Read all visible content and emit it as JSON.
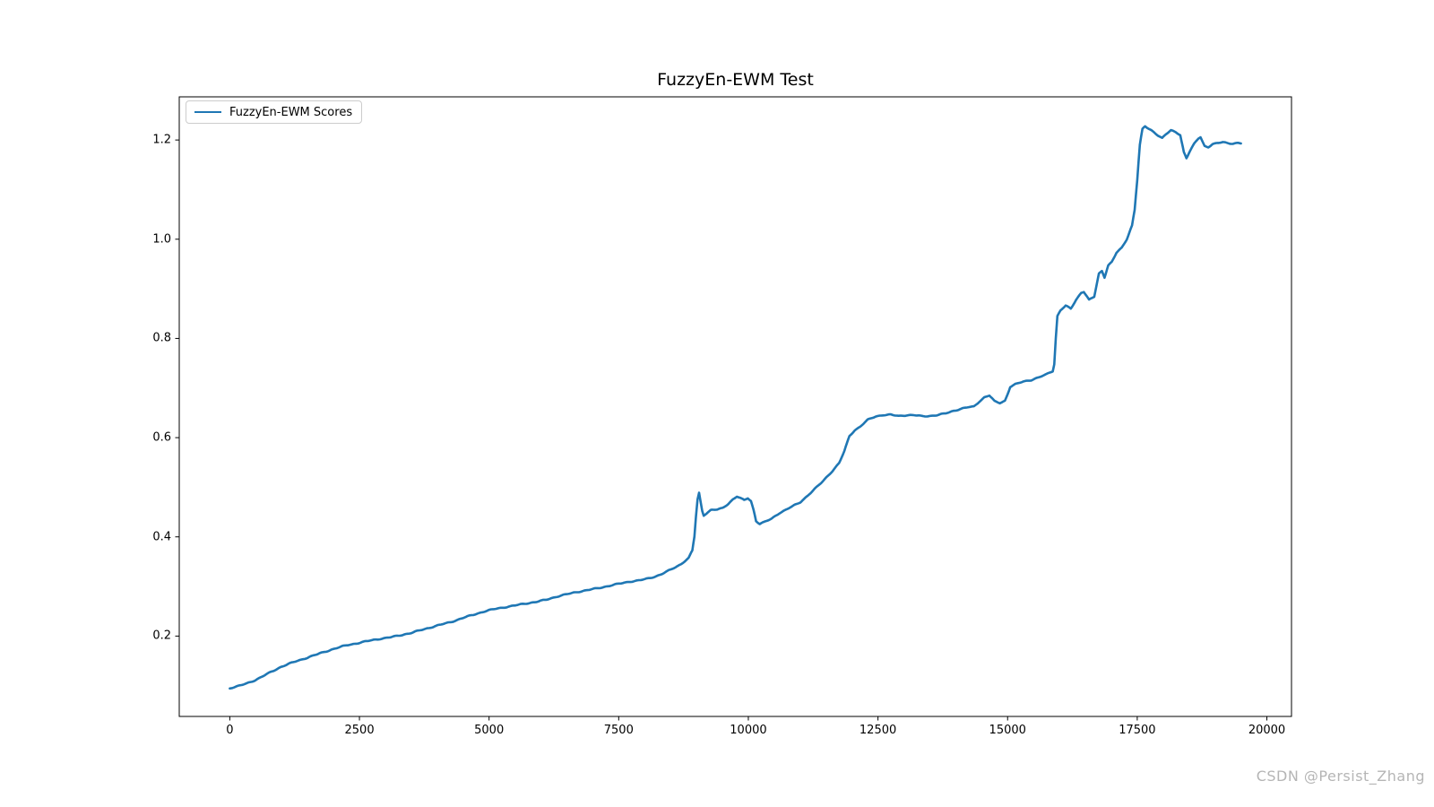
{
  "watermark": {
    "text": "CSDN @Persist_Zhang"
  },
  "colors": {
    "line": "#1f77b4",
    "spine": "#000000",
    "tick": "#000000",
    "legend_border": "#cccccc",
    "watermark": "#b5b5b5"
  },
  "chart_data": {
    "type": "line",
    "title": "FuzzyEn-EWM Test",
    "xlabel": "",
    "ylabel": "",
    "xlim": [
      -975,
      20475
    ],
    "ylim": [
      0.038,
      1.287
    ],
    "x_ticks": [
      0,
      2500,
      5000,
      7500,
      10000,
      12500,
      15000,
      17500,
      20000
    ],
    "y_ticks": [
      0.2,
      0.4,
      0.6,
      0.8,
      1.0,
      1.2
    ],
    "grid": false,
    "legend_position": "upper left",
    "series": [
      {
        "name": "FuzzyEn-EWM Scores",
        "color": "#1f77b4",
        "points": [
          [
            0,
            0.095
          ],
          [
            150,
            0.099
          ],
          [
            300,
            0.104
          ],
          [
            500,
            0.112
          ],
          [
            750,
            0.125
          ],
          [
            1000,
            0.138
          ],
          [
            1250,
            0.148
          ],
          [
            1500,
            0.157
          ],
          [
            1750,
            0.166
          ],
          [
            2000,
            0.174
          ],
          [
            2250,
            0.181
          ],
          [
            2500,
            0.186
          ],
          [
            2700,
            0.191
          ],
          [
            2900,
            0.195
          ],
          [
            3100,
            0.198
          ],
          [
            3300,
            0.202
          ],
          [
            3500,
            0.206
          ],
          [
            3700,
            0.212
          ],
          [
            3900,
            0.218
          ],
          [
            4100,
            0.224
          ],
          [
            4300,
            0.23
          ],
          [
            4500,
            0.237
          ],
          [
            4700,
            0.243
          ],
          [
            4900,
            0.249
          ],
          [
            5100,
            0.254
          ],
          [
            5300,
            0.258
          ],
          [
            5500,
            0.262
          ],
          [
            5700,
            0.266
          ],
          [
            5900,
            0.269
          ],
          [
            6100,
            0.273
          ],
          [
            6300,
            0.279
          ],
          [
            6500,
            0.284
          ],
          [
            6700,
            0.289
          ],
          [
            6900,
            0.293
          ],
          [
            7100,
            0.297
          ],
          [
            7300,
            0.301
          ],
          [
            7500,
            0.305
          ],
          [
            7700,
            0.309
          ],
          [
            7900,
            0.312
          ],
          [
            8100,
            0.317
          ],
          [
            8300,
            0.324
          ],
          [
            8500,
            0.334
          ],
          [
            8700,
            0.345
          ],
          [
            8850,
            0.357
          ],
          [
            8920,
            0.372
          ],
          [
            8960,
            0.4
          ],
          [
            8990,
            0.44
          ],
          [
            9020,
            0.475
          ],
          [
            9050,
            0.488
          ],
          [
            9080,
            0.47
          ],
          [
            9110,
            0.452
          ],
          [
            9140,
            0.443
          ],
          [
            9200,
            0.448
          ],
          [
            9280,
            0.454
          ],
          [
            9400,
            0.455
          ],
          [
            9500,
            0.458
          ],
          [
            9600,
            0.466
          ],
          [
            9700,
            0.476
          ],
          [
            9780,
            0.482
          ],
          [
            9850,
            0.478
          ],
          [
            9920,
            0.474
          ],
          [
            9990,
            0.478
          ],
          [
            10050,
            0.472
          ],
          [
            10100,
            0.455
          ],
          [
            10150,
            0.432
          ],
          [
            10220,
            0.426
          ],
          [
            10300,
            0.429
          ],
          [
            10450,
            0.436
          ],
          [
            10600,
            0.448
          ],
          [
            10800,
            0.459
          ],
          [
            11000,
            0.47
          ],
          [
            11200,
            0.489
          ],
          [
            11400,
            0.508
          ],
          [
            11600,
            0.53
          ],
          [
            11750,
            0.548
          ],
          [
            11850,
            0.572
          ],
          [
            11950,
            0.603
          ],
          [
            12050,
            0.615
          ],
          [
            12150,
            0.622
          ],
          [
            12300,
            0.636
          ],
          [
            12450,
            0.643
          ],
          [
            12600,
            0.646
          ],
          [
            12750,
            0.646
          ],
          [
            12900,
            0.643
          ],
          [
            13050,
            0.645
          ],
          [
            13200,
            0.645
          ],
          [
            13350,
            0.643
          ],
          [
            13500,
            0.644
          ],
          [
            13650,
            0.646
          ],
          [
            13800,
            0.649
          ],
          [
            13950,
            0.654
          ],
          [
            14100,
            0.658
          ],
          [
            14250,
            0.661
          ],
          [
            14350,
            0.662
          ],
          [
            14450,
            0.672
          ],
          [
            14550,
            0.681
          ],
          [
            14650,
            0.685
          ],
          [
            14750,
            0.673
          ],
          [
            14850,
            0.67
          ],
          [
            14950,
            0.675
          ],
          [
            15000,
            0.688
          ],
          [
            15050,
            0.703
          ],
          [
            15150,
            0.708
          ],
          [
            15300,
            0.713
          ],
          [
            15450,
            0.716
          ],
          [
            15600,
            0.721
          ],
          [
            15750,
            0.727
          ],
          [
            15870,
            0.734
          ],
          [
            15900,
            0.748
          ],
          [
            15930,
            0.8
          ],
          [
            15960,
            0.845
          ],
          [
            16020,
            0.857
          ],
          [
            16120,
            0.866
          ],
          [
            16220,
            0.86
          ],
          [
            16320,
            0.878
          ],
          [
            16420,
            0.893
          ],
          [
            16470,
            0.895
          ],
          [
            16570,
            0.878
          ],
          [
            16670,
            0.884
          ],
          [
            16760,
            0.93
          ],
          [
            16820,
            0.936
          ],
          [
            16870,
            0.923
          ],
          [
            16940,
            0.947
          ],
          [
            17010,
            0.954
          ],
          [
            17100,
            0.972
          ],
          [
            17200,
            0.982
          ],
          [
            17300,
            1.0
          ],
          [
            17400,
            1.028
          ],
          [
            17450,
            1.06
          ],
          [
            17500,
            1.12
          ],
          [
            17550,
            1.19
          ],
          [
            17600,
            1.222
          ],
          [
            17650,
            1.228
          ],
          [
            17720,
            1.223
          ],
          [
            17800,
            1.218
          ],
          [
            17900,
            1.21
          ],
          [
            17980,
            1.204
          ],
          [
            18060,
            1.212
          ],
          [
            18150,
            1.219
          ],
          [
            18250,
            1.215
          ],
          [
            18330,
            1.21
          ],
          [
            18400,
            1.175
          ],
          [
            18450,
            1.163
          ],
          [
            18520,
            1.178
          ],
          [
            18600,
            1.192
          ],
          [
            18680,
            1.203
          ],
          [
            18720,
            1.206
          ],
          [
            18800,
            1.188
          ],
          [
            18870,
            1.186
          ],
          [
            18950,
            1.192
          ],
          [
            19050,
            1.194
          ],
          [
            19150,
            1.196
          ],
          [
            19250,
            1.194
          ],
          [
            19350,
            1.193
          ],
          [
            19450,
            1.194
          ],
          [
            19500,
            1.193
          ]
        ]
      }
    ]
  }
}
